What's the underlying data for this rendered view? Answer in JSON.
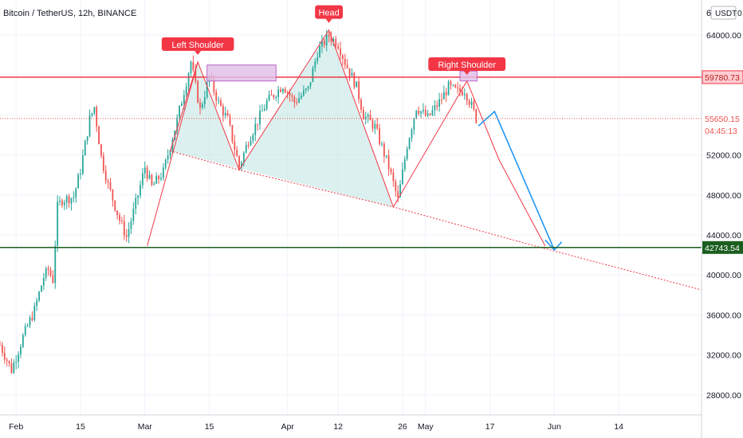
{
  "header": {
    "symbol": "Bitcoin / TetherUS, 12h, BINANCE",
    "currency_badge": "USDT",
    "currency_suffix": "0",
    "top_tick": "6"
  },
  "colors": {
    "up": "#26a69a",
    "down": "#ef5350",
    "pattern_line": "#f23645",
    "resistance": "#f23645",
    "support": "#1b5e20",
    "projection": "#2196f3",
    "fill": "#b2dfdb",
    "label_bg": "#f23645",
    "neck_box": "#e1bee7"
  },
  "chart_data": {
    "type": "candlestick",
    "title": "Bitcoin / TetherUS, 12h, BINANCE",
    "y_axis": {
      "ticks": [
        28000,
        32000,
        36000,
        40000,
        44000,
        48000,
        52000,
        56000,
        60000,
        64000
      ],
      "tick_labels": [
        "28000.00",
        "32000.00",
        "36000.00",
        "40000.00",
        "44000.00",
        "48000.00",
        "52000.00",
        "",
        "",
        "64000.00"
      ],
      "range": [
        26000,
        67500
      ],
      "position": "right"
    },
    "x_axis": {
      "tick_labels": [
        "Feb",
        "15",
        "Mar",
        "15",
        "Apr",
        "12",
        "26",
        "May",
        "17",
        "Jun",
        "14"
      ],
      "tick_days": [
        0,
        14,
        28,
        42,
        59,
        70,
        84,
        89,
        103,
        117,
        131
      ],
      "range_days": [
        -3.5,
        149
      ],
      "first_label": "Feb"
    },
    "candles_keypoints": [
      [
        -3.5,
        33000
      ],
      [
        -1,
        30500
      ],
      [
        1.5,
        33800
      ],
      [
        4,
        36500
      ],
      [
        6,
        39800
      ],
      [
        7,
        40500
      ],
      [
        8,
        39500
      ],
      [
        9,
        46800
      ],
      [
        10,
        47500
      ],
      [
        12.5,
        47800
      ],
      [
        14,
        50500
      ],
      [
        16,
        55600
      ],
      [
        17,
        56800
      ],
      [
        18.5,
        51800
      ],
      [
        20,
        49000
      ],
      [
        22.5,
        45500
      ],
      [
        24,
        43800
      ],
      [
        26.5,
        48000
      ],
      [
        28,
        50800
      ],
      [
        29.5,
        48800
      ],
      [
        32,
        50300
      ],
      [
        35,
        55500
      ],
      [
        38,
        61300
      ],
      [
        40,
        56500
      ],
      [
        42,
        59800
      ],
      [
        44,
        57200
      ],
      [
        46,
        55500
      ],
      [
        48.5,
        50800
      ],
      [
        50.5,
        53500
      ],
      [
        54.5,
        57300
      ],
      [
        58,
        59000
      ],
      [
        60.5,
        57300
      ],
      [
        63.5,
        58600
      ],
      [
        65.5,
        62300
      ],
      [
        68,
        63900
      ],
      [
        70,
        63100
      ],
      [
        71.5,
        61300
      ],
      [
        74,
        58800
      ],
      [
        75.5,
        56000
      ],
      [
        78,
        54800
      ],
      [
        81,
        50800
      ],
      [
        83,
        47500
      ],
      [
        85,
        53000
      ],
      [
        87,
        56800
      ],
      [
        89.5,
        55700
      ],
      [
        92,
        57300
      ],
      [
        94,
        58800
      ],
      [
        96,
        58300
      ],
      [
        97.5,
        58500
      ],
      [
        99,
        56900
      ],
      [
        100,
        55650
      ]
    ],
    "annotations": [
      {
        "type": "label",
        "text": "Left Shoulder",
        "day": 39.5,
        "price": 61300
      },
      {
        "type": "label",
        "text": "Head",
        "day": 68,
        "price": 64500
      },
      {
        "type": "label",
        "text": "Right Shoulder",
        "day": 98,
        "price": 59300
      }
    ],
    "pattern_points": {
      "zigzag": [
        [
          33.5,
          52400
        ],
        [
          39.5,
          61300
        ],
        [
          48.5,
          50500
        ],
        [
          68,
          64500
        ],
        [
          82,
          46800
        ],
        [
          98,
          59400
        ],
        [
          105,
          51500
        ],
        [
          115,
          42900
        ]
      ],
      "left_leg": [
        [
          28.5,
          42900
        ],
        [
          39.5,
          61300
        ]
      ],
      "neckline": [
        [
          33.5,
          52400
        ],
        [
          48.5,
          50500
        ],
        [
          82,
          46800
        ],
        [
          112,
          43000
        ],
        [
          149,
          38500
        ]
      ]
    },
    "projection": [
      [
        100.5,
        54900
      ],
      [
        104,
        56350
      ],
      [
        117,
        42500
      ],
      [
        118.3,
        43200
      ]
    ],
    "levels": [
      {
        "name": "resistance",
        "price": 59780.73,
        "label": "59780.73"
      },
      {
        "name": "support",
        "price": 42743.54,
        "label": "42743.54"
      },
      {
        "name": "last",
        "price": 55650.15,
        "label": "55650.15",
        "countdown": "04:45:13"
      }
    ],
    "neckline_boxes": [
      {
        "day_from": 41.5,
        "day_to": 56.5,
        "price_from": 59400,
        "price_to": 61000
      },
      {
        "day_from": 96.5,
        "day_to": 100.2,
        "price_from": 59400,
        "price_to": 60400
      }
    ]
  }
}
